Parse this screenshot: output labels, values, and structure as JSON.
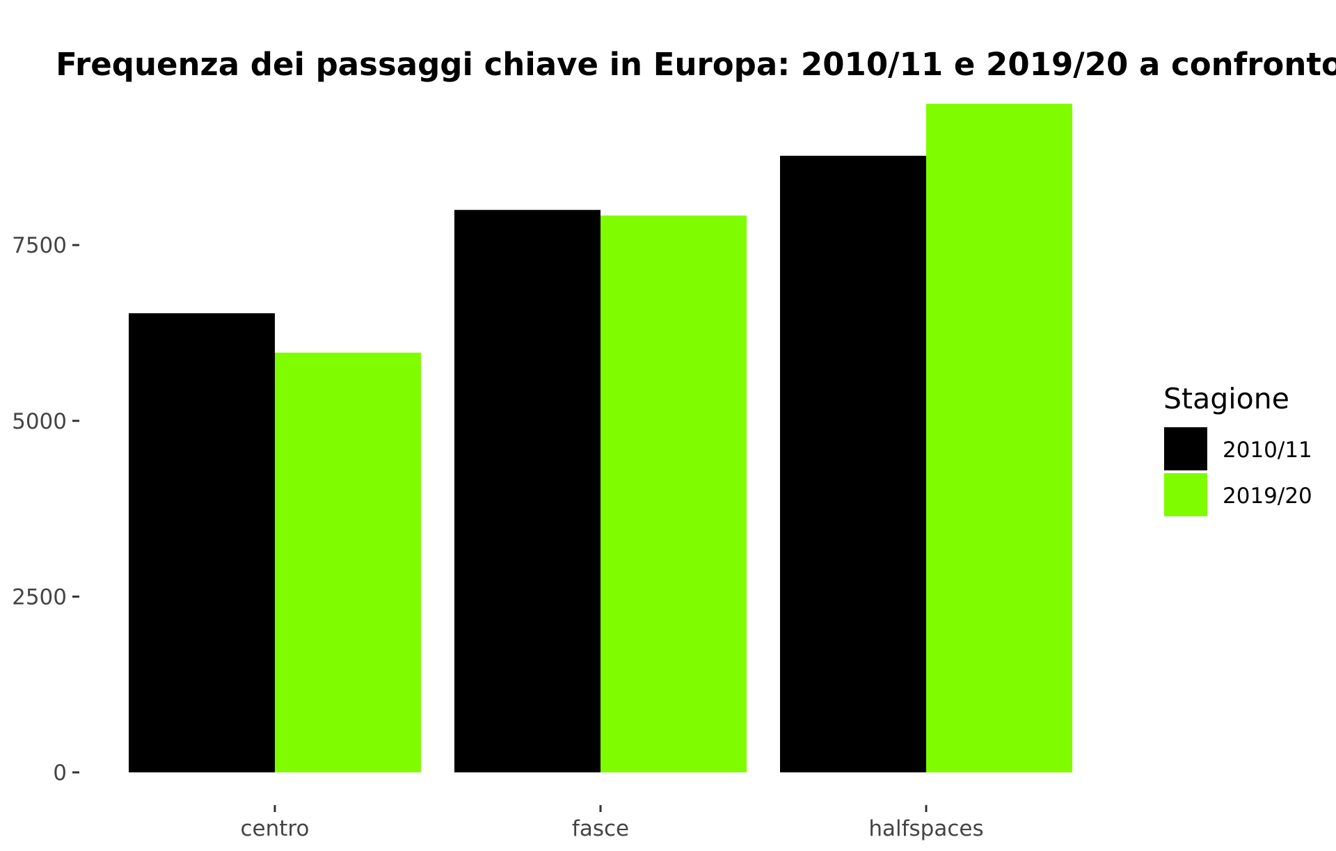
{
  "chart_data": {
    "type": "bar",
    "title": "Frequenza dei passaggi chiave in Europa: 2010/11 e 2019/20 a confronto",
    "xlabel": "",
    "ylabel": "",
    "categories": [
      "centro",
      "fasce",
      "halfspaces"
    ],
    "series": [
      {
        "name": "2010/11",
        "color": "#000000",
        "values": [
          6530,
          8000,
          8770
        ]
      },
      {
        "name": "2019/20",
        "color": "#7FFC00",
        "values": [
          5970,
          7920,
          9510
        ]
      }
    ],
    "ylim": [
      0,
      9600
    ],
    "yticks": [
      0,
      2500,
      5000,
      7500
    ],
    "ytick_labels": [
      "0",
      "2500",
      "5000",
      "7500"
    ],
    "grid": false,
    "legend": {
      "title": "Stagione",
      "placement": "right",
      "entries": [
        "2010/11",
        "2019/20"
      ]
    }
  }
}
